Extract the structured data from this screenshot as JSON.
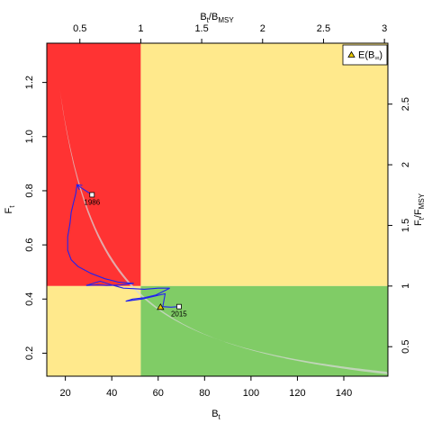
{
  "chart_data": {
    "type": "line",
    "colors": {
      "red_zone": "#ff3333",
      "yellow_zone": "#ffe98c",
      "green_zone": "#80cc66",
      "band": "#d8d8d8",
      "trajectory": "#2222ee",
      "expected_marker": "#e8c800"
    },
    "axes": {
      "bottom": {
        "label": "B",
        "label_sub": "t",
        "range": [
          12,
          159
        ],
        "ticks": [
          20,
          40,
          60,
          80,
          100,
          120,
          140
        ]
      },
      "left": {
        "label": "F",
        "label_sub": "t",
        "range": [
          0.115,
          1.345
        ],
        "ticks": [
          0.2,
          0.4,
          0.6,
          0.8,
          1.0,
          1.2
        ],
        "tick_labels": [
          "0.2",
          "0.4",
          "0.6",
          "0.8",
          "1.0",
          "1.2"
        ]
      },
      "top": {
        "label": "B",
        "label_sub": "t",
        "label_suffix": "/B",
        "label_suffix_sub": "MSY",
        "ticks": [
          0.5,
          1,
          1.5,
          2,
          2.5,
          3
        ],
        "tick_labels": [
          "0.5",
          "1",
          "1.5",
          "2",
          "2.5",
          "3"
        ]
      },
      "right": {
        "label": "F",
        "label_sub": "t",
        "label_suffix": "/F",
        "label_suffix_sub": "MSY",
        "ticks": [
          0.5,
          1,
          1.5,
          2,
          2.5
        ],
        "tick_labels": [
          "0.5",
          "1",
          "1.5",
          "2",
          "2.5"
        ]
      }
    },
    "reference": {
      "bmsy": 52.5,
      "fmsy": 0.448
    },
    "trajectory": {
      "x": [
        31.5,
        27.0,
        25.0,
        24.5,
        23.5,
        22.5,
        22.0,
        21.0,
        21.0,
        22.5,
        25.5,
        31.0,
        37.0,
        43.0,
        49.5,
        44.0,
        38.0,
        34.0,
        29.0,
        35.0,
        40.0,
        45.0,
        50.0,
        54.0,
        60.0,
        65.0,
        59.0,
        54.0,
        49.0,
        46.0,
        53.0,
        58.0,
        63.0,
        62.0,
        65.5,
        69.0
      ],
      "y": [
        0.785,
        0.81,
        0.822,
        0.79,
        0.755,
        0.72,
        0.68,
        0.63,
        0.58,
        0.545,
        0.52,
        0.495,
        0.475,
        0.462,
        0.458,
        0.452,
        0.45,
        0.452,
        0.45,
        0.466,
        0.452,
        0.44,
        0.438,
        0.436,
        0.44,
        0.44,
        0.415,
        0.405,
        0.4,
        0.392,
        0.4,
        0.41,
        0.42,
        0.372,
        0.37,
        0.372
      ]
    },
    "year_labels": [
      {
        "text": "1986",
        "x": 31.5,
        "y": 0.785
      },
      {
        "text": "2015",
        "x": 69.0,
        "y": 0.372
      }
    ],
    "expected_point": {
      "x": 61.0,
      "y": 0.37
    },
    "legend": {
      "symbol_label": "E(B",
      "symbol_label_sub": "∞",
      "symbol_label_end": ")",
      "position": "top-right"
    }
  }
}
